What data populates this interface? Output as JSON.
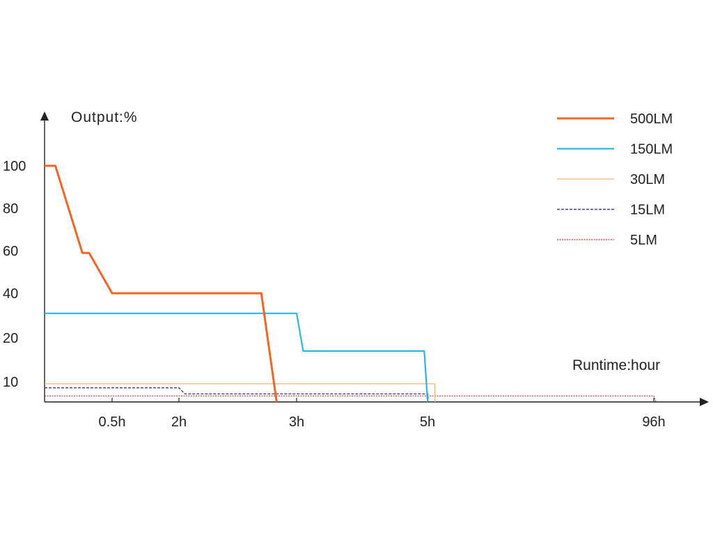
{
  "chart_data": {
    "type": "line",
    "ylabel": "Output:%",
    "xlabel": "Runtime:hour",
    "y_ticks": [
      "100",
      "80",
      "60",
      "40",
      "20",
      "10"
    ],
    "x_ticks": [
      "0.5h",
      "2h",
      "3h",
      "5h",
      "96h"
    ],
    "legend_position": "top-right",
    "series": [
      {
        "name": "500LM",
        "color": "#f26522",
        "style": "solid-thick",
        "points": [
          [
            0,
            100
          ],
          [
            0.08,
            100
          ],
          [
            0.28,
            59
          ],
          [
            0.33,
            59
          ],
          [
            0.5,
            40
          ],
          [
            2.7,
            40
          ],
          [
            2.83,
            0
          ]
        ]
      },
      {
        "name": "150LM",
        "color": "#29b6e8",
        "style": "solid",
        "points": [
          [
            0,
            31
          ],
          [
            3.0,
            31
          ],
          [
            3.1,
            17
          ],
          [
            4.95,
            17
          ],
          [
            5.05,
            0
          ]
        ]
      },
      {
        "name": "30LM",
        "color": "#f7b27a",
        "style": "solid-thin",
        "points": [
          [
            0,
            9
          ],
          [
            7.9,
            9
          ],
          [
            8.0,
            0
          ]
        ]
      },
      {
        "name": "15LM",
        "color": "#3d3a8c",
        "style": "dashed",
        "points": [
          [
            0,
            7
          ],
          [
            2.0,
            7
          ],
          [
            2.05,
            4
          ],
          [
            5.15,
            4
          ],
          [
            5.25,
            0
          ]
        ]
      },
      {
        "name": "5LM",
        "color": "#b03030",
        "style": "dotted",
        "points": [
          [
            0,
            3
          ],
          [
            96,
            3
          ],
          [
            96.3,
            0
          ]
        ]
      }
    ]
  }
}
